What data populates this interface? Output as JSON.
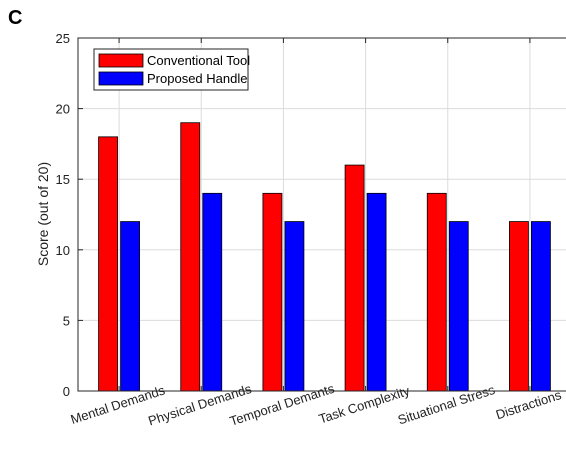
{
  "panel_label": "C",
  "chart_data": {
    "type": "bar",
    "title": "",
    "xlabel": "",
    "ylabel": "Score (out of 20)",
    "ylim": [
      0,
      25
    ],
    "yticks": [
      0,
      5,
      10,
      15,
      20,
      25
    ],
    "grid": true,
    "legend_position": "top-left",
    "categories": [
      "Mental Demands",
      "Physical Demands",
      "Temporal Demants",
      "Task Complexity",
      "Situational Stress",
      "Distractions"
    ],
    "series": [
      {
        "name": "Conventional Tool",
        "color": "#ff0000",
        "values": [
          18,
          19,
          14,
          16,
          14,
          12
        ]
      },
      {
        "name": "Proposed Handle",
        "color": "#0000ff",
        "values": [
          12,
          14,
          12,
          14,
          12,
          12
        ]
      }
    ]
  }
}
